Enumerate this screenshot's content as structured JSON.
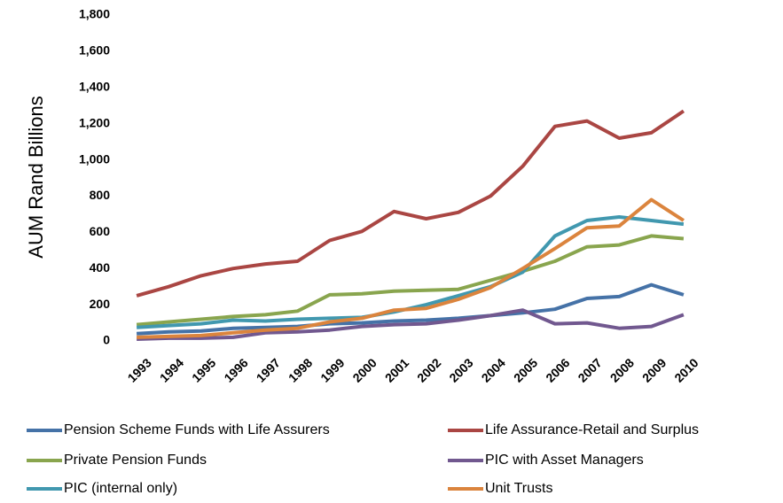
{
  "chart_data": {
    "type": "line",
    "y_label": "AUM Rand Billions",
    "categories": [
      "1993",
      "1994",
      "1995",
      "1996",
      "1997",
      "1998",
      "1999",
      "2000",
      "2001",
      "2002",
      "2003",
      "2004",
      "2005",
      "2006",
      "2007",
      "2008",
      "2009",
      "2010"
    ],
    "series": [
      {
        "name": "Pension Scheme Funds with Life Assurers",
        "color": "#4572A7",
        "values": [
          40,
          50,
          55,
          70,
          75,
          80,
          95,
          100,
          110,
          115,
          125,
          140,
          155,
          175,
          235,
          245,
          310,
          255
        ]
      },
      {
        "name": "Life Assurance-Retail and Surplus",
        "color": "#AA4643",
        "values": [
          250,
          300,
          360,
          400,
          425,
          440,
          555,
          605,
          715,
          675,
          710,
          800,
          965,
          1185,
          1215,
          1120,
          1150,
          1270
        ]
      },
      {
        "name": "Private Pension Funds",
        "color": "#89A54E",
        "values": [
          90,
          105,
          120,
          135,
          145,
          165,
          255,
          260,
          275,
          280,
          285,
          335,
          385,
          440,
          520,
          530,
          580,
          565
        ]
      },
      {
        "name": "PIC with Asset Managers",
        "color": "#71588F",
        "values": [
          10,
          15,
          15,
          20,
          45,
          50,
          60,
          80,
          90,
          95,
          115,
          140,
          170,
          95,
          100,
          70,
          80,
          145
        ]
      },
      {
        "name": "PIC (internal only)",
        "color": "#4198AF",
        "values": [
          75,
          85,
          95,
          115,
          110,
          120,
          125,
          130,
          160,
          200,
          250,
          300,
          380,
          580,
          665,
          685,
          665,
          645
        ]
      },
      {
        "name": "Unit Trusts",
        "color": "#DB843D",
        "values": [
          20,
          25,
          30,
          45,
          60,
          70,
          105,
          125,
          170,
          180,
          230,
          295,
          400,
          510,
          625,
          635,
          780,
          665
        ]
      }
    ],
    "ylim": [
      0,
      1800
    ],
    "yticks": [
      0,
      200,
      400,
      600,
      800,
      {
        "value": 1000,
        "label": "1,000"
      },
      {
        "value": 1200,
        "label": "1,200"
      },
      {
        "value": 1400,
        "label": "1,400"
      },
      {
        "value": 1600,
        "label": "1,600"
      },
      {
        "value": 1800,
        "label": "1,800"
      }
    ],
    "grid": false
  }
}
